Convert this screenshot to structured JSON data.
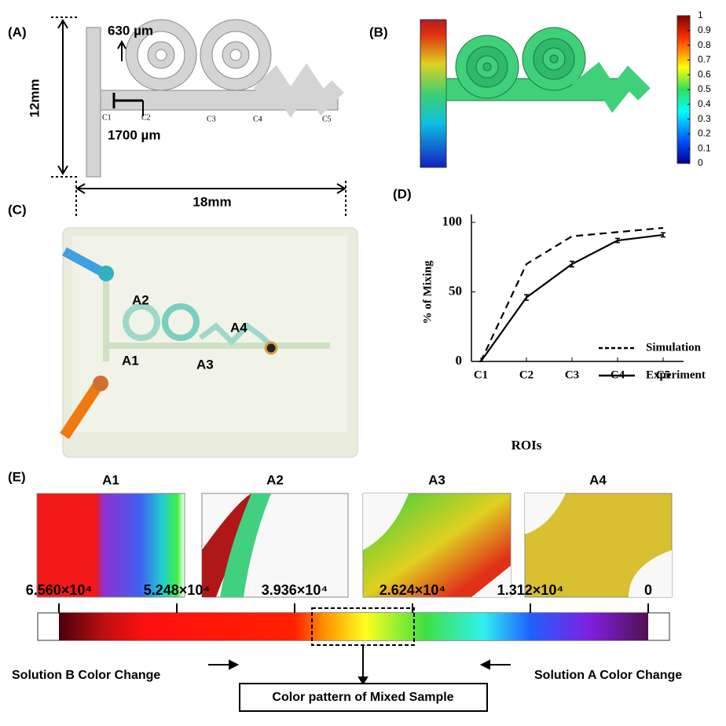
{
  "panel_labels": [
    "(A)",
    "(B)",
    "(C)",
    "(D)",
    "(E)"
  ],
  "schematic": {
    "dimensions": [
      "630 µm",
      "1700 µm",
      "12mm",
      "18mm"
    ],
    "roi_labels": [
      "C1",
      "C2",
      "C3",
      "C4",
      "C5"
    ]
  },
  "simulation_colorbar": {
    "ticks": [
      0,
      0.1,
      0.2,
      0.3,
      0.4,
      0.5,
      0.6,
      0.7,
      0.8,
      0.9,
      1
    ]
  },
  "device_photo": {
    "labels": [
      "A2",
      "A1",
      "A3",
      "A4"
    ]
  },
  "chart_data": {
    "type": "line",
    "x_label": "ROIs",
    "y_label": "% of Mixing",
    "categories": [
      "C1",
      "C2",
      "C3",
      "C4",
      "C5"
    ],
    "series": [
      {
        "name": "Simulation",
        "color": "#000000",
        "dash": true,
        "values": [
          0,
          70,
          90,
          93,
          96
        ]
      },
      {
        "name": "Experiment",
        "color": "#000000",
        "dash": false,
        "values": [
          0,
          46,
          70,
          87,
          91
        ],
        "errors": [
          0,
          2,
          2,
          1.5,
          1.5
        ]
      }
    ],
    "ylim": [
      0,
      100
    ],
    "yticks": [
      0,
      50,
      100
    ],
    "grid": false,
    "legend": "lower right"
  },
  "roi_images": {
    "titles": [
      "A1",
      "A2",
      "A3",
      "A4"
    ]
  },
  "intensity_scale": {
    "ticks": [
      {
        "value": 65600,
        "label": "6.560×10⁴"
      },
      {
        "value": 52480,
        "label": "5.248×10⁴"
      },
      {
        "value": 39360,
        "label": "3.936×10⁴"
      },
      {
        "value": 26240,
        "label": "2.624×10⁴"
      },
      {
        "value": 13120,
        "label": "1.312×10⁴"
      },
      0
    ],
    "left_note": "Solution B Color Change",
    "center_note": "Color pattern of Mixed Sample",
    "right_note": "Solution A Color Change"
  }
}
